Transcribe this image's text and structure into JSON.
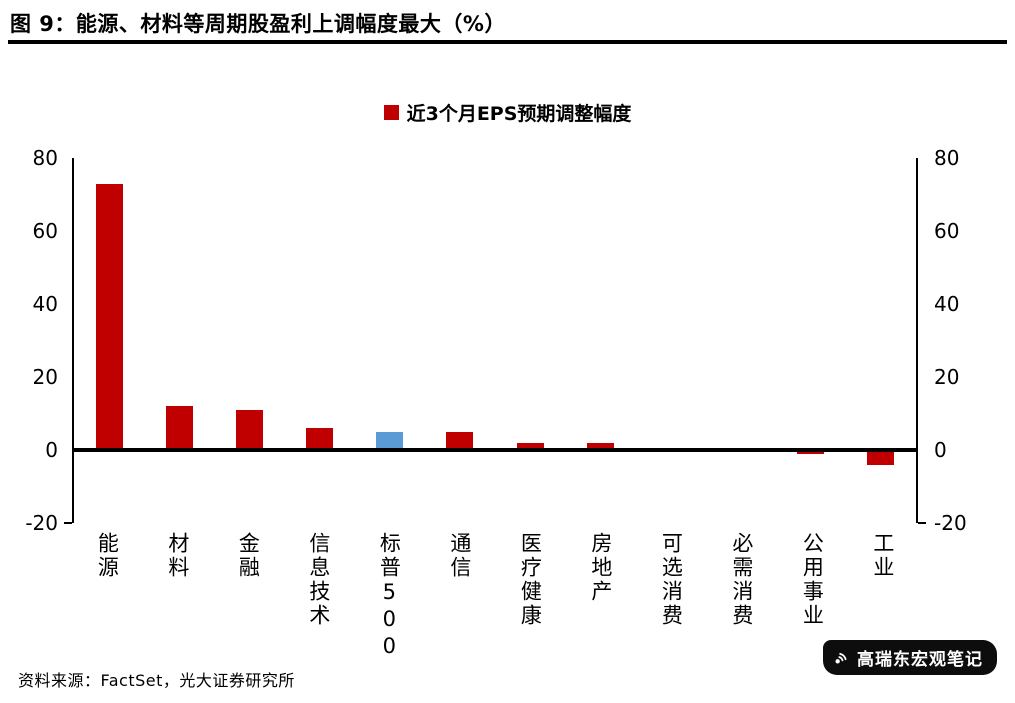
{
  "chart_data": {
    "type": "bar",
    "title": "图 9：能源、材料等周期股盈利上调幅度最大（%）",
    "legend": [
      {
        "label": "近3个月EPS预期调整幅度",
        "color": "#c00000"
      }
    ],
    "legend_position": "top",
    "categories": [
      "能源",
      "材料",
      "金融",
      "信息技术",
      "标普500",
      "通信",
      "医疗健康",
      "房地产",
      "可选消费",
      "必需消费",
      "公用事业",
      "工业"
    ],
    "values": [
      73,
      12,
      11,
      6,
      5,
      5,
      2,
      2,
      0.3,
      0.2,
      -1,
      -4
    ],
    "bar_colors": [
      "#c00000",
      "#c00000",
      "#c00000",
      "#c00000",
      "#5b9bd5",
      "#c00000",
      "#c00000",
      "#c00000",
      "#c00000",
      "#c00000",
      "#c00000",
      "#c00000"
    ],
    "ylim": [
      -20,
      80
    ],
    "yticks": [
      80,
      60,
      40,
      20,
      0,
      -20
    ],
    "y_axis_sides": [
      "left",
      "right"
    ],
    "grid": false,
    "xlabel": "",
    "ylabel": ""
  },
  "footer": {
    "source": "资料来源：FactSet，光大证券研究所"
  },
  "watermark": {
    "text": "高瑞东宏观笔记",
    "icon": "broadcast-icon"
  },
  "colors": {
    "bar_red": "#c00000",
    "bar_blue": "#5b9bd5",
    "axis": "#000000"
  }
}
